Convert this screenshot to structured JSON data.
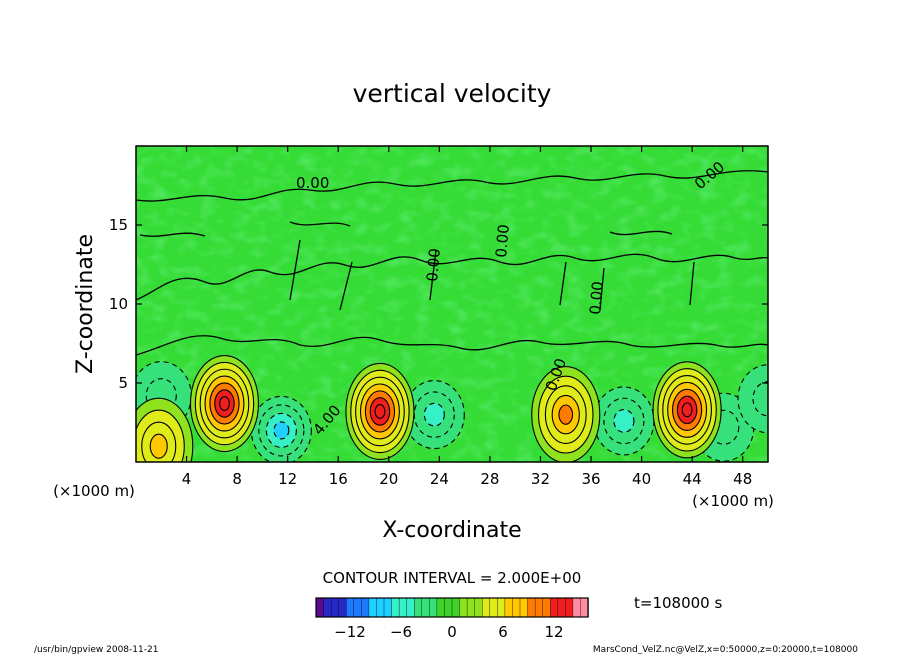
{
  "chart_data": {
    "type": "heatmap",
    "title": "vertical velocity",
    "xlabel": "X-coordinate",
    "ylabel": "Z-coordinate",
    "x_unit": "(×1000 m)",
    "z_unit": "(×1000 m)",
    "xlim": [
      0,
      50
    ],
    "ylim": [
      0,
      20
    ],
    "xticks": [
      "4",
      "8",
      "12",
      "16",
      "20",
      "24",
      "28",
      "32",
      "36",
      "40",
      "44",
      "48"
    ],
    "yticks": [
      "5",
      "10",
      "15"
    ],
    "contour_interval": "CONTOUR INTERVAL = 2.000E+00",
    "contour_labels": [
      "0.00",
      "0.00",
      "0.00",
      "0.00",
      "0.00",
      "0.00",
      "4.00"
    ],
    "colorbar": {
      "vmin": -16,
      "vmax": 16,
      "ticks": [
        "−12",
        "−6",
        "0",
        "6",
        "12"
      ],
      "colors": [
        "#5a0a8c",
        "#2828c8",
        "#1e7aff",
        "#1ecfff",
        "#36f0c8",
        "#36e07a",
        "#3ed22a",
        "#8ee21e",
        "#e0ec1a",
        "#ffc800",
        "#ff7a00",
        "#f01e1e",
        "#ff8ca0"
      ]
    },
    "updrafts": [
      {
        "x": 1.8,
        "z": 1.0,
        "w": 7
      },
      {
        "x": 7.0,
        "z": 3.7,
        "w": 14
      },
      {
        "x": 19.3,
        "z": 3.2,
        "w": 13
      },
      {
        "x": 34.0,
        "z": 3.0,
        "w": 10
      },
      {
        "x": 43.6,
        "z": 3.3,
        "w": 14
      }
    ],
    "downdrafts": [
      {
        "x": 2.0,
        "z": 4.2,
        "w": -4
      },
      {
        "x": 11.5,
        "z": 2.0,
        "w": -8
      },
      {
        "x": 23.6,
        "z": 3.0,
        "w": -6
      },
      {
        "x": 38.6,
        "z": 2.6,
        "w": -6
      },
      {
        "x": 46.5,
        "z": 2.2,
        "w": -4
      },
      {
        "x": 50.0,
        "z": 4.0,
        "w": -4
      }
    ]
  },
  "time_label": "t=108000 s",
  "footer": {
    "left": "/usr/bin/gpview   2008-11-21",
    "right": "MarsCond_VelZ.nc@VelZ,x=0:50000,z=0:20000,t=108000"
  }
}
